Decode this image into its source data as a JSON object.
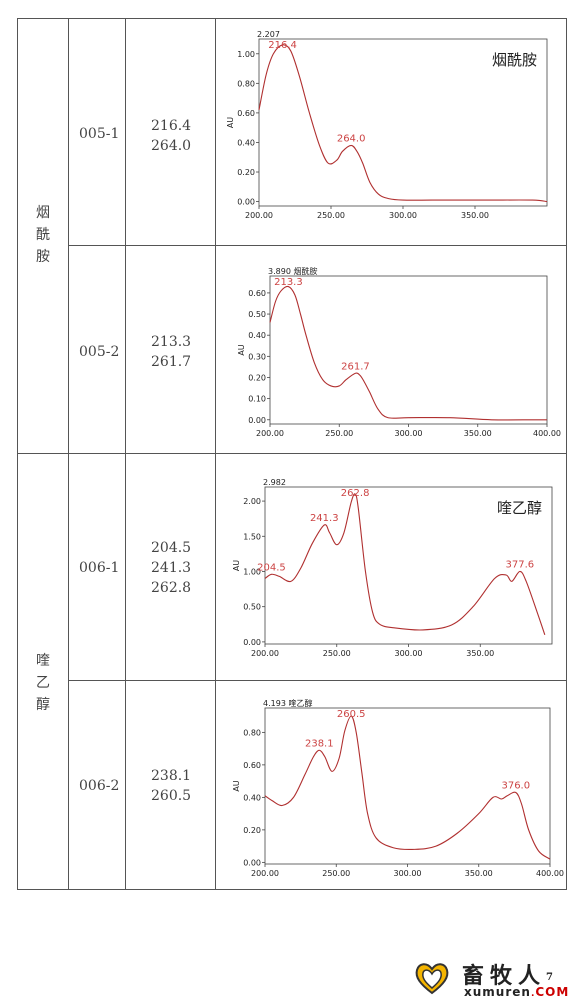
{
  "groups": [
    {
      "compound": "烟酰胺",
      "rows": [
        {
          "code": "005-1",
          "peaks": [
            "216.4",
            "264.0"
          ],
          "spectrum": {
            "max_label": "2.207",
            "small_title": "",
            "inset_title": "烟酰胺",
            "xticks": [
              "200.00",
              "250.00",
              "300.00",
              "350.00"
            ],
            "yticks": [
              "0.00",
              "0.20",
              "0.40",
              "0.60",
              "0.80",
              "1.00"
            ],
            "ylabel": "AU",
            "peak_labels": [
              "216.4",
              "264.0"
            ]
          }
        },
        {
          "code": "005-2",
          "peaks": [
            "213.3",
            "261.7"
          ],
          "spectrum": {
            "max_label": "3.890",
            "small_title": "烟酰胺",
            "inset_title": "",
            "xticks": [
              "200.00",
              "250.00",
              "300.00",
              "350.00",
              "400.00"
            ],
            "yticks": [
              "0.00",
              "0.10",
              "0.20",
              "0.30",
              "0.40",
              "0.50",
              "0.60"
            ],
            "ylabel": "AU",
            "peak_labels": [
              "213.3",
              "261.7"
            ]
          }
        }
      ]
    },
    {
      "compound": "喹乙醇",
      "rows": [
        {
          "code": "006-1",
          "peaks": [
            "204.5",
            "241.3",
            "262.8"
          ],
          "spectrum": {
            "max_label": "2.982",
            "small_title": "",
            "inset_title": "喹乙醇",
            "xticks": [
              "200.00",
              "250.00",
              "300.00",
              "350.00"
            ],
            "yticks": [
              "0.00",
              "0.50",
              "1.00",
              "1.50",
              "2.00"
            ],
            "ylabel": "AU",
            "peak_labels": [
              "204.5",
              "241.3",
              "262.8",
              "377.6"
            ]
          }
        },
        {
          "code": "006-2",
          "peaks": [
            "238.1",
            "260.5"
          ],
          "spectrum": {
            "max_label": "4.193",
            "small_title": "喹乙醇",
            "inset_title": "",
            "xticks": [
              "200.00",
              "250.00",
              "300.00",
              "350.00",
              "400.00"
            ],
            "yticks": [
              "0.00",
              "0.20",
              "0.40",
              "0.60",
              "0.80"
            ],
            "ylabel": "AU",
            "peak_labels": [
              "238.1",
              "260.5",
              "376.0"
            ]
          }
        }
      ]
    }
  ],
  "chart_data": [
    {
      "type": "line",
      "title": "烟酰胺",
      "ylabel": "AU",
      "xlim": [
        200,
        400
      ],
      "ylim": [
        -0.03,
        1.1
      ],
      "x": [
        200,
        205,
        210,
        216.4,
        222,
        228,
        235,
        242,
        248,
        254,
        258,
        264,
        268,
        272,
        277,
        283,
        290,
        300,
        320,
        340,
        360,
        390,
        400
      ],
      "y": [
        0.62,
        0.86,
        1.0,
        1.06,
        1.02,
        0.85,
        0.6,
        0.38,
        0.26,
        0.28,
        0.34,
        0.38,
        0.34,
        0.26,
        0.13,
        0.05,
        0.02,
        0.01,
        0.01,
        0.01,
        0.01,
        0.01,
        0.0
      ],
      "annotations": [
        {
          "x": 216.4,
          "label": "216.4"
        },
        {
          "x": 264.0,
          "label": "264.0"
        }
      ],
      "max_label": "2.207"
    },
    {
      "type": "line",
      "title": "",
      "ylabel": "AU",
      "xlim": [
        200,
        400
      ],
      "ylim": [
        -0.02,
        0.68
      ],
      "x": [
        200,
        204,
        208,
        213.3,
        218,
        222,
        226,
        232,
        238,
        244,
        250,
        255,
        261.7,
        265,
        268,
        272,
        278,
        285,
        300,
        330,
        360,
        390,
        400
      ],
      "y": [
        0.46,
        0.56,
        0.61,
        0.63,
        0.59,
        0.5,
        0.4,
        0.27,
        0.19,
        0.16,
        0.16,
        0.19,
        0.22,
        0.21,
        0.18,
        0.13,
        0.05,
        0.01,
        0.01,
        0.01,
        0.0,
        0.0,
        0.0
      ],
      "annotations": [
        {
          "x": 213.3,
          "label": "213.3"
        },
        {
          "x": 261.7,
          "label": "261.7"
        }
      ],
      "max_label": "3.890"
    },
    {
      "type": "line",
      "title": "喹乙醇",
      "ylabel": "AU",
      "xlim": [
        200,
        400
      ],
      "ylim": [
        -0.03,
        2.2
      ],
      "x": [
        200,
        204.5,
        210,
        218,
        225,
        233,
        241.3,
        245,
        250,
        255,
        260,
        262.8,
        265,
        270,
        275,
        280,
        290,
        310,
        330,
        345,
        360,
        368,
        372,
        377.6,
        382,
        390,
        395
      ],
      "y": [
        0.9,
        0.96,
        0.93,
        0.86,
        1.05,
        1.4,
        1.66,
        1.55,
        1.38,
        1.55,
        1.98,
        2.1,
        1.9,
        1.0,
        0.42,
        0.25,
        0.2,
        0.17,
        0.24,
        0.5,
        0.9,
        0.95,
        0.86,
        1.0,
        0.86,
        0.4,
        0.1
      ],
      "annotations": [
        {
          "x": 204.5,
          "label": "204.5"
        },
        {
          "x": 241.3,
          "label": "241.3"
        },
        {
          "x": 262.8,
          "label": "262.8"
        },
        {
          "x": 377.6,
          "label": "377.6"
        }
      ],
      "max_label": "2.982"
    },
    {
      "type": "line",
      "title": "",
      "ylabel": "AU",
      "xlim": [
        200,
        400
      ],
      "ylim": [
        -0.01,
        0.95
      ],
      "x": [
        200,
        205,
        212,
        220,
        228,
        234,
        238.1,
        242,
        247,
        252,
        256,
        260.5,
        264,
        268,
        272,
        278,
        290,
        305,
        320,
        335,
        350,
        360,
        366,
        370,
        376,
        380,
        385,
        392,
        400
      ],
      "y": [
        0.41,
        0.38,
        0.35,
        0.4,
        0.54,
        0.65,
        0.69,
        0.65,
        0.56,
        0.64,
        0.81,
        0.9,
        0.8,
        0.55,
        0.3,
        0.15,
        0.09,
        0.08,
        0.1,
        0.18,
        0.3,
        0.4,
        0.39,
        0.41,
        0.43,
        0.36,
        0.2,
        0.07,
        0.02
      ],
      "annotations": [
        {
          "x": 238.1,
          "label": "238.1"
        },
        {
          "x": 260.5,
          "label": "260.5"
        },
        {
          "x": 376.0,
          "label": "376.0"
        }
      ],
      "max_label": "4.193"
    }
  ],
  "footer": {
    "logo_cn": "畜牧人",
    "logo_sup": "7",
    "logo_en_main": "xumuren",
    "logo_en_dot": ".",
    "logo_en_tld": "COM"
  }
}
